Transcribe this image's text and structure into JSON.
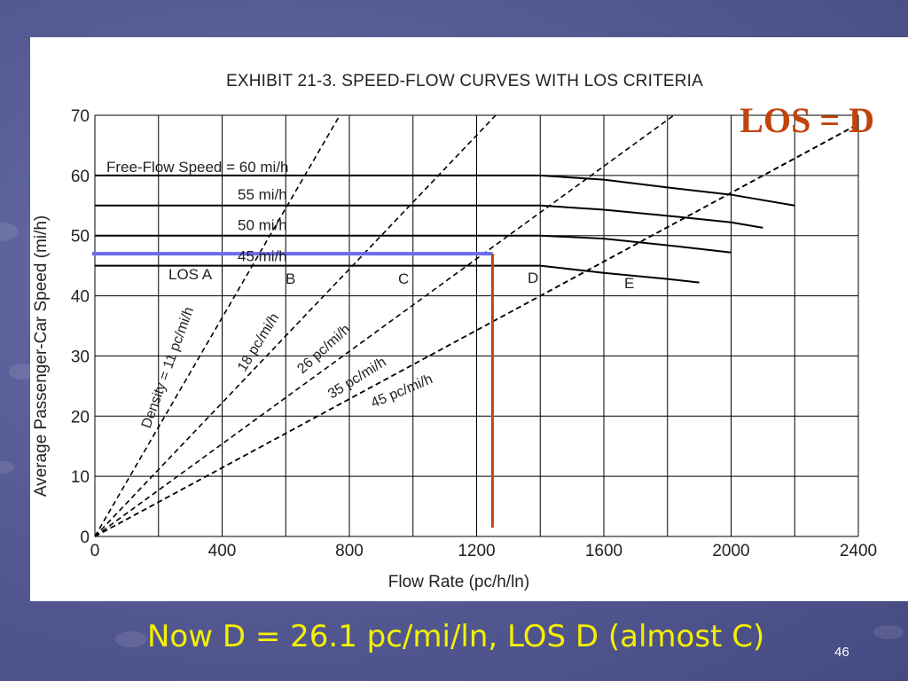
{
  "slide": {
    "los_title": "LOS = D",
    "caption": "Now D = 26.1 pc/mi/ln, LOS D (almost C)",
    "page_number": "46"
  },
  "colors": {
    "background": "#575c96",
    "los_title": "#c1440e",
    "caption": "#f4f000",
    "blue_line": "#6a6af0",
    "red_line": "#c1440e"
  },
  "chart_data": {
    "type": "line",
    "title": "Exhibit 21-3.  Speed-Flow Curves with LOS Criteria",
    "xlabel": "Flow Rate (pc/h/ln)",
    "ylabel": "Average Passenger-Car Speed (mi/h)",
    "xlim": [
      0,
      2400
    ],
    "ylim": [
      0,
      70
    ],
    "xticks": [
      0,
      400,
      800,
      1200,
      1600,
      2000,
      2400
    ],
    "yticks": [
      0,
      10,
      20,
      30,
      40,
      50,
      60,
      70
    ],
    "grid_x_step": 200,
    "grid_y_step": 10,
    "grid": true,
    "speed_flow_curves": [
      {
        "name": "Free-Flow Speed = 60 mi/h",
        "points": [
          [
            0,
            60
          ],
          [
            1400,
            60
          ],
          [
            1600,
            59.3
          ],
          [
            1800,
            58
          ],
          [
            2000,
            56.8
          ],
          [
            2200,
            55
          ]
        ]
      },
      {
        "name": "55 mi/h",
        "points": [
          [
            0,
            55
          ],
          [
            1400,
            55
          ],
          [
            1600,
            54.3
          ],
          [
            1800,
            53.3
          ],
          [
            2000,
            52.2
          ],
          [
            2100,
            51.3
          ]
        ]
      },
      {
        "name": "50 mi/h",
        "points": [
          [
            0,
            50
          ],
          [
            1400,
            50
          ],
          [
            1600,
            49.5
          ],
          [
            1800,
            48.4
          ],
          [
            2000,
            47.2
          ]
        ]
      },
      {
        "name": "45 mi/h",
        "points": [
          [
            0,
            45
          ],
          [
            1400,
            45
          ],
          [
            1600,
            43.8
          ],
          [
            1800,
            42.8
          ],
          [
            1900,
            42.2
          ]
        ]
      }
    ],
    "density_lines": [
      {
        "name": "Density = 11 pc/mi/h",
        "slope": 11
      },
      {
        "name": "18 pc/mi/h",
        "slope": 18
      },
      {
        "name": "26 pc/mi/h",
        "slope": 26
      },
      {
        "name": "35 pc/mi/h",
        "slope": 35
      },
      {
        "name": "45 pc/mi/h",
        "slope": 45
      }
    ],
    "los_regions": [
      "LOS A",
      "B",
      "C",
      "D",
      "E"
    ],
    "annotations": {
      "operating_speed": 47,
      "operating_flow": 1250
    }
  }
}
